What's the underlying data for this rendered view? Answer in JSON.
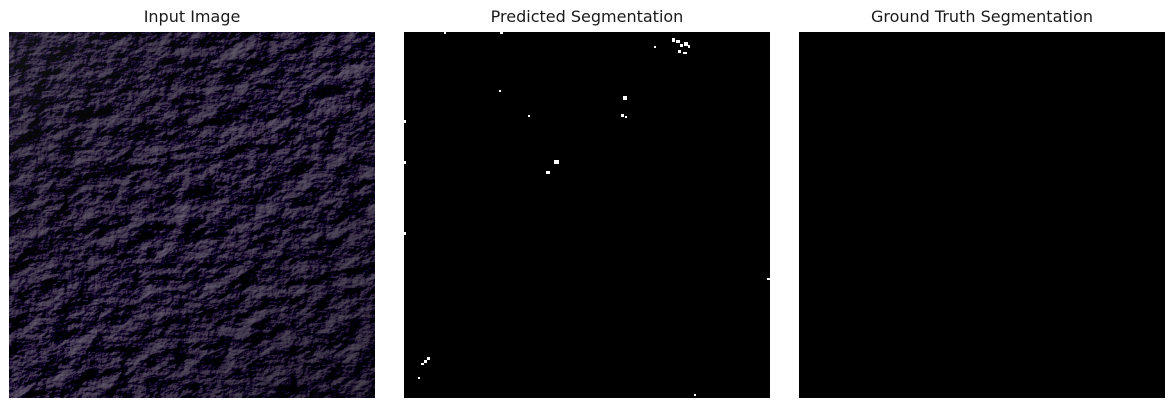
{
  "figure": {
    "panels": [
      {
        "title": "Input Image",
        "image_description": "grayscale aerial/terrain texture",
        "tone": "#2b2a2c"
      },
      {
        "title": "Predicted Segmentation",
        "image_description": "black mask with sparse white specks",
        "mask_color": "#000000",
        "speck_color": "#ffffff"
      },
      {
        "title": "Ground Truth Segmentation",
        "image_description": "all-black mask",
        "mask_color": "#000000"
      }
    ]
  }
}
